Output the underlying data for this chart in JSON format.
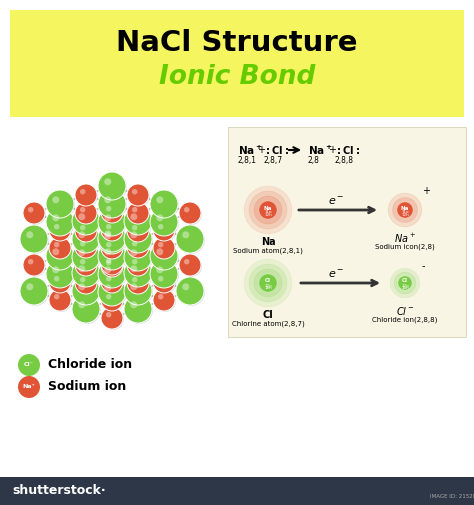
{
  "title": "NaCl Structure",
  "subtitle": "Ionic Bond",
  "title_color": "#000000",
  "subtitle_color": "#66cc00",
  "header_bg": "#f5f560",
  "bg_color": "#ffffff",
  "chloride_color": "#77cc44",
  "sodium_color": "#e05535",
  "grid_line_color": "#b0a8a0",
  "right_panel_bg": "#f8f5e4",
  "shutterstock_bg": "#2d3748",
  "shutterstock_text": "shutterstock·"
}
